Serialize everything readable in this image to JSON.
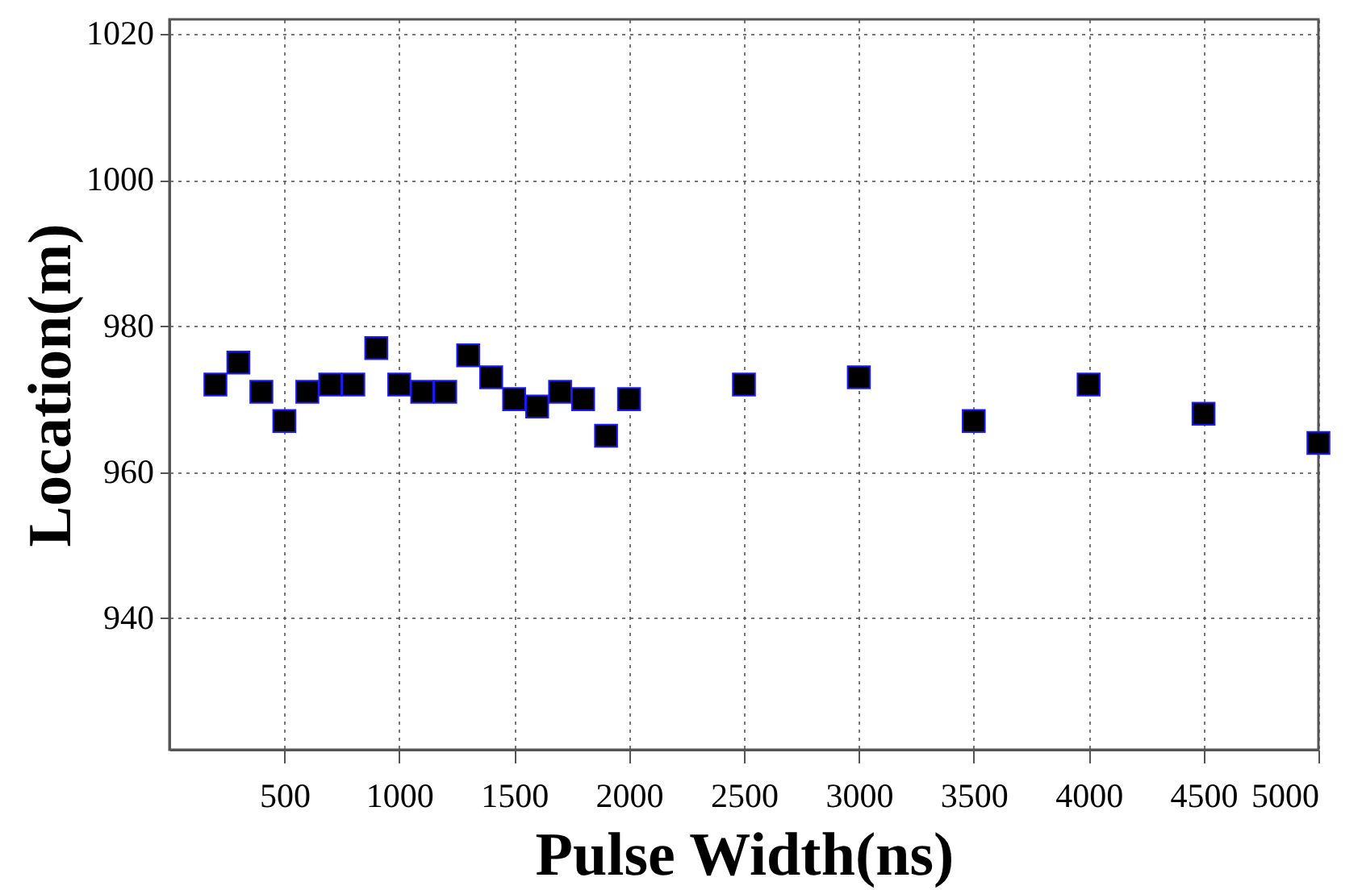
{
  "chart_data": {
    "type": "scatter",
    "xlabel": "Pulse Width(ns)",
    "ylabel": "Location(m)",
    "x": [
      200,
      300,
      400,
      500,
      600,
      700,
      800,
      900,
      1000,
      1100,
      1200,
      1300,
      1400,
      1500,
      1600,
      1700,
      1800,
      1900,
      2000,
      2500,
      3000,
      3500,
      4000,
      4500,
      5000
    ],
    "series": [
      {
        "color": "#000000",
        "values": [
          972,
          975,
          971,
          967,
          971,
          972,
          972,
          977,
          972,
          971,
          971,
          976,
          973,
          970,
          969,
          971,
          970,
          965,
          970,
          972,
          973,
          967,
          972,
          968,
          964
        ]
      }
    ],
    "xlim": [
      0,
      5000
    ],
    "xticks": [
      500,
      1000,
      1500,
      2000,
      2500,
      3000,
      3500,
      4000,
      4500,
      5000
    ],
    "ylim": [
      922,
      1022
    ],
    "yticks": [
      940,
      960,
      980,
      1000,
      1020
    ],
    "grid": true,
    "marker": "square"
  }
}
